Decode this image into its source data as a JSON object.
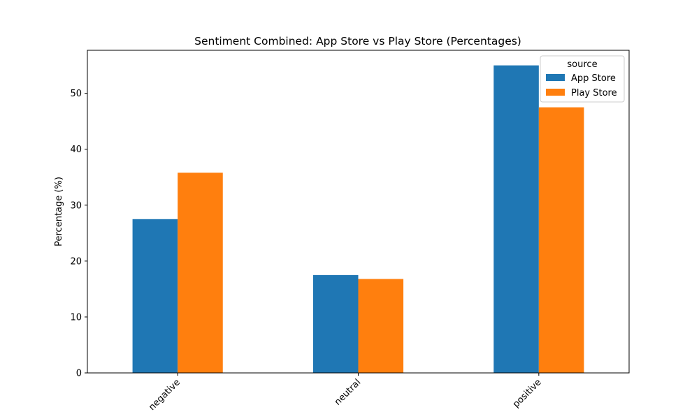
{
  "chart_data": {
    "type": "bar",
    "title": "Sentiment Combined: App Store vs Play Store (Percentages)",
    "xlabel": "",
    "ylabel": "Percentage (%)",
    "categories": [
      "negative",
      "neutral",
      "positive"
    ],
    "series": [
      {
        "name": "App Store",
        "values": [
          27.5,
          17.5,
          55.0
        ],
        "color": "#1f77b4"
      },
      {
        "name": "Play Store",
        "values": [
          35.8,
          16.8,
          47.5
        ],
        "color": "#ff7f0e"
      }
    ],
    "ylim": [
      0,
      57.7
    ],
    "yticks": [
      "0",
      "10",
      "20",
      "30",
      "40",
      "50"
    ],
    "legend": {
      "title": "source",
      "placement": "top-right"
    },
    "grid": false
  }
}
